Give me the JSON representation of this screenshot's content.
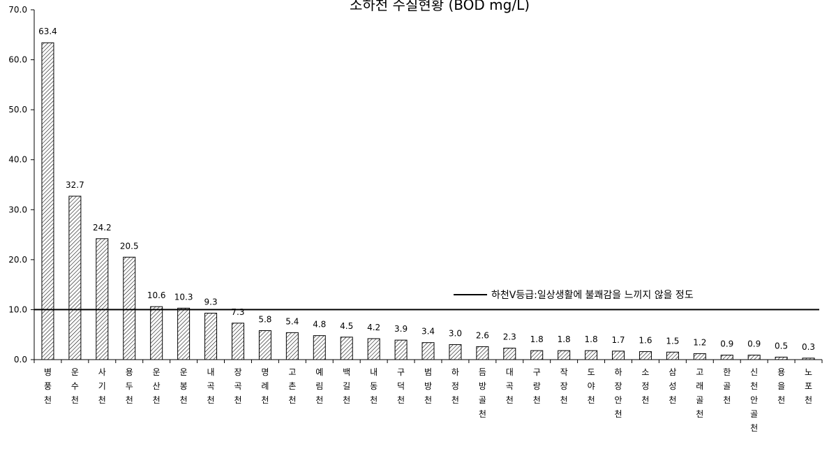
{
  "chart_data": {
    "type": "bar",
    "title": "소하천 수질현황 (BOD mg/L)",
    "xlabel": "",
    "ylabel": "",
    "ylim": [
      0,
      70
    ],
    "yticks": [
      "0.0",
      "10.0",
      "20.0",
      "30.0",
      "40.0",
      "50.0",
      "60.0",
      "70.0"
    ],
    "categories": [
      "병풍천",
      "운수천",
      "사기천",
      "용두천",
      "운산천",
      "운봉천",
      "내곡천",
      "장곡천",
      "명례천",
      "고촌천",
      "예림천",
      "백길천",
      "내동천",
      "구덕천",
      "범방천",
      "하정천",
      "듬방골천",
      "대곡천",
      "구랑천",
      "작장천",
      "도야천",
      "하장안천",
      "소정천",
      "삼성천",
      "고래골천",
      "한골천",
      "신천안골천",
      "용을천",
      "노포천"
    ],
    "values": [
      63.4,
      32.7,
      24.2,
      20.5,
      10.6,
      10.3,
      9.3,
      7.3,
      5.8,
      5.4,
      4.8,
      4.5,
      4.2,
      3.9,
      3.4,
      3.0,
      2.6,
      2.3,
      1.8,
      1.8,
      1.8,
      1.7,
      1.6,
      1.5,
      1.2,
      0.9,
      0.9,
      0.5,
      0.3
    ],
    "value_labels": [
      "63.4",
      "32.7",
      "24.2",
      "20.5",
      "10.6",
      "10.3",
      "9.3",
      "7.3",
      "5.8",
      "5.4",
      "4.8",
      "4.5",
      "4.2",
      "3.9",
      "3.4",
      "3.0",
      "2.6",
      "2.3",
      "1.8",
      "1.8",
      "1.8",
      "1.7",
      "1.6",
      "1.5",
      "1.2",
      "0.9",
      "0.9",
      "0.5",
      "0.3"
    ],
    "reference_line": {
      "value": 10,
      "label": "하천Ⅴ등급:일상생활에 불쾌감을 느끼지 않을 정도"
    },
    "legend_position": "right",
    "grid": false,
    "bar_fill": "hatched",
    "colors": {
      "bar_stroke": "#000000",
      "hatch": "#000000",
      "line": "#000000"
    }
  }
}
